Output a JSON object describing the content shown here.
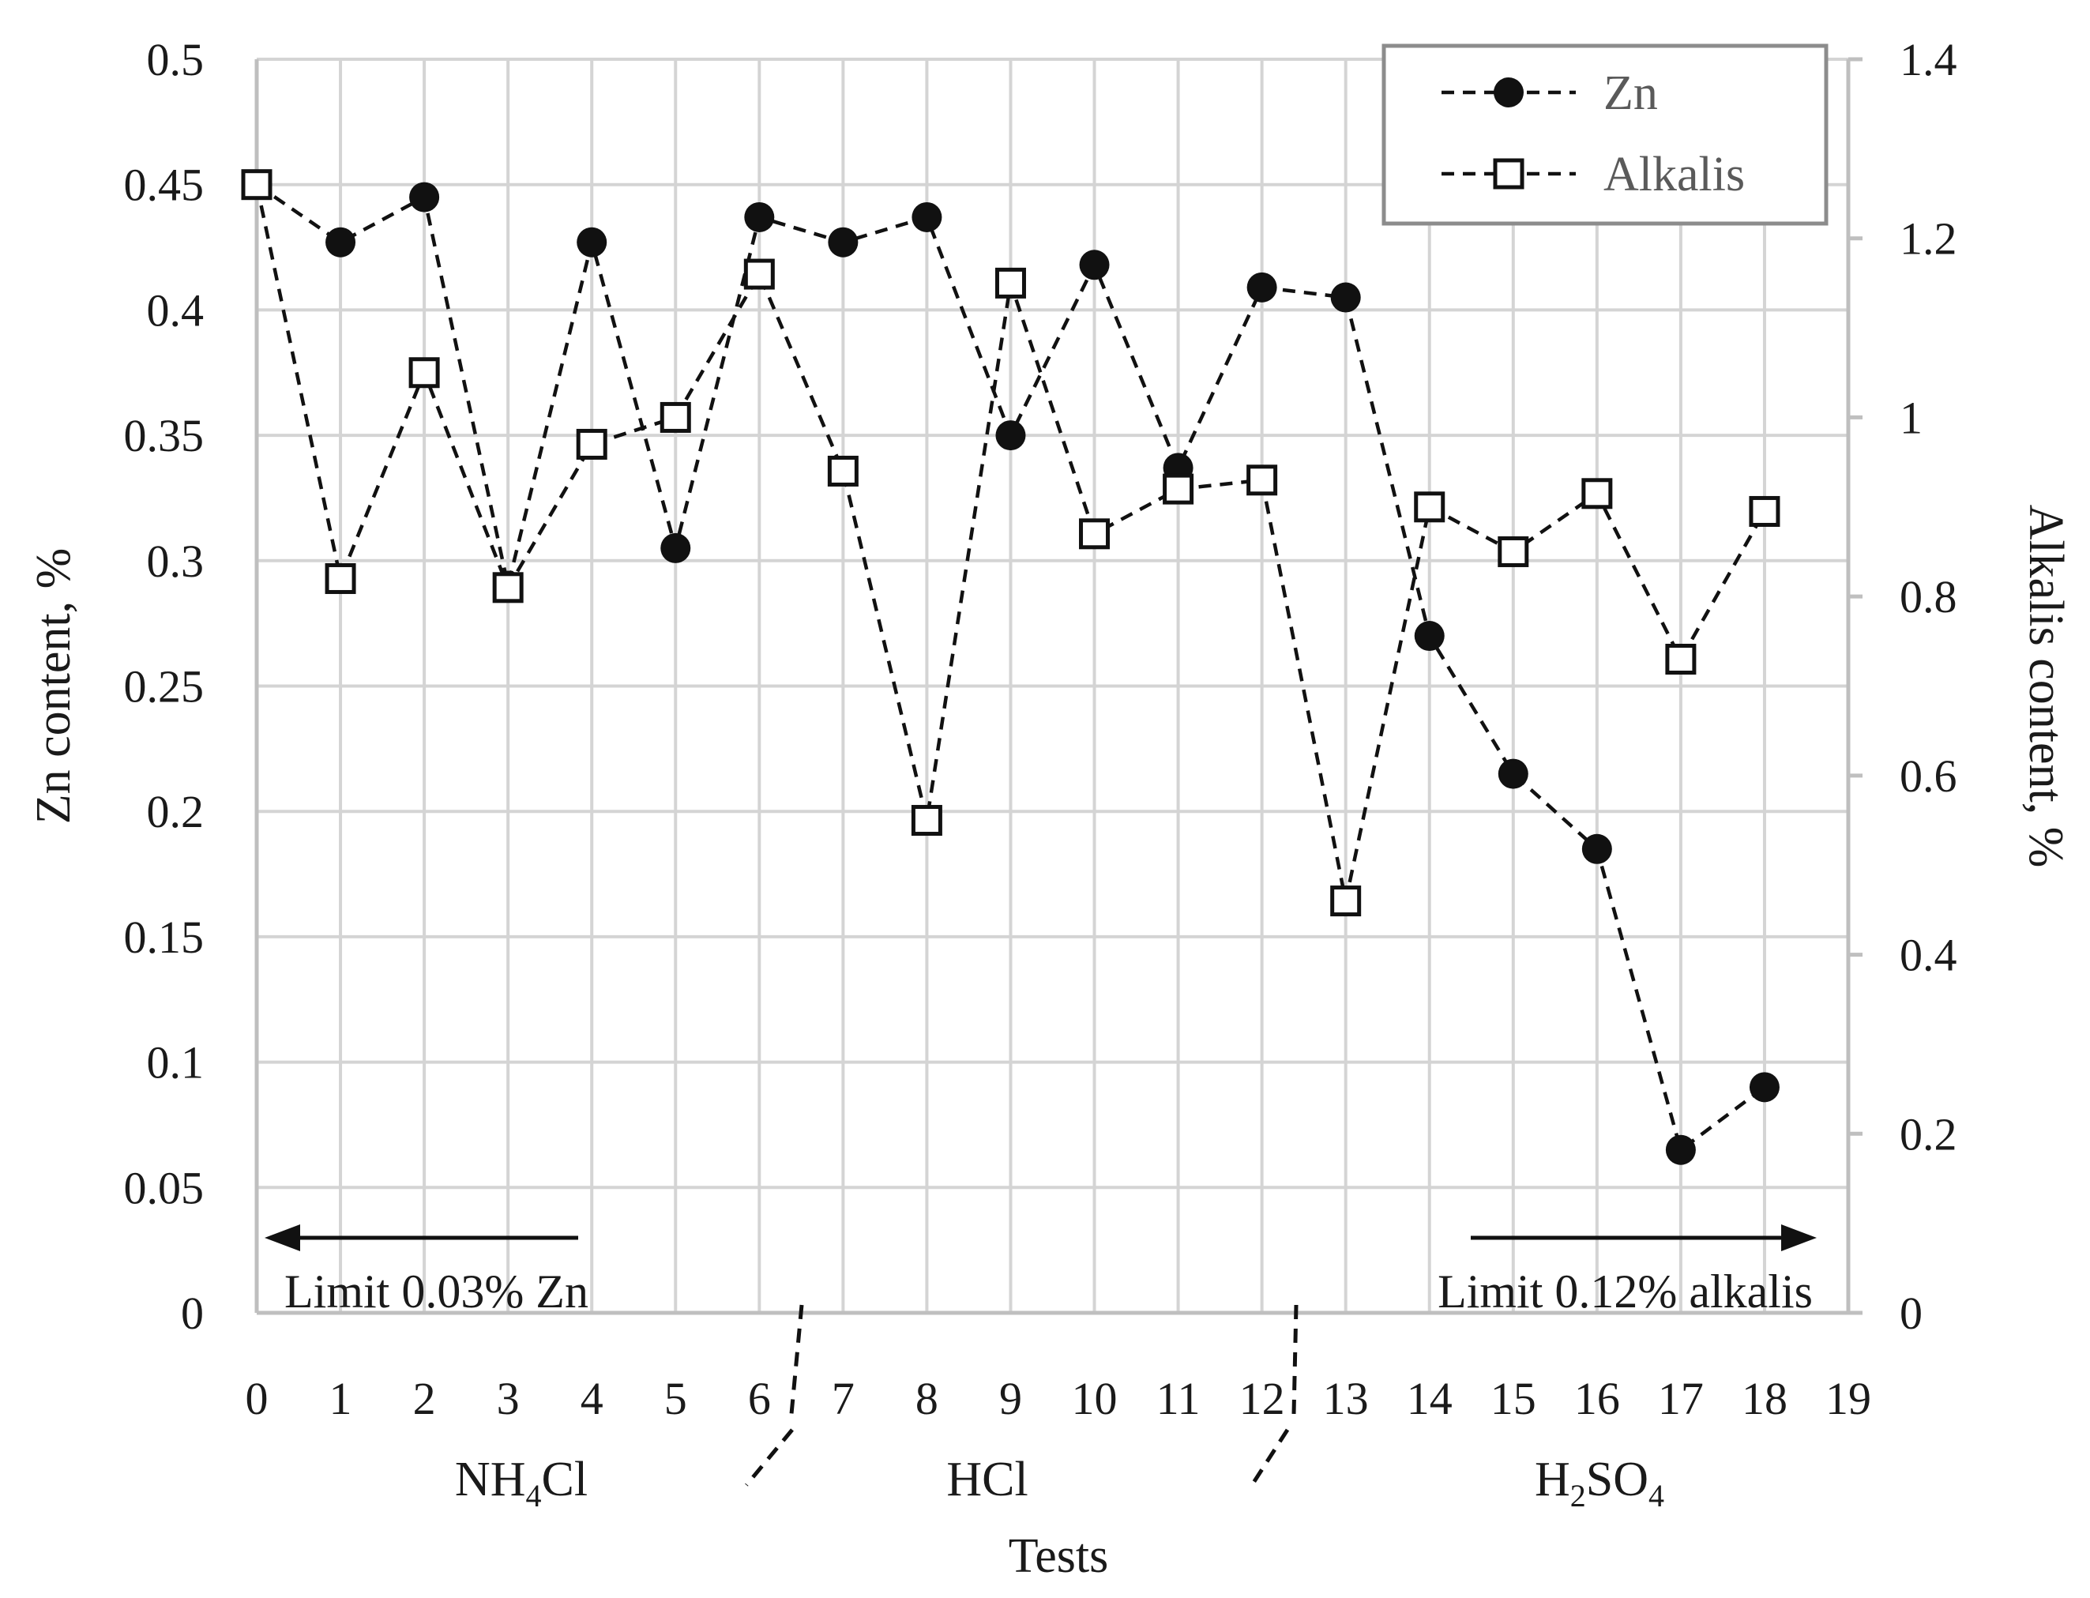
{
  "chart_data": {
    "type": "line",
    "x": [
      0,
      1,
      2,
      3,
      4,
      5,
      6,
      7,
      8,
      9,
      10,
      11,
      12,
      13,
      14,
      15,
      16,
      17,
      18
    ],
    "x_ticks": [
      0,
      1,
      2,
      3,
      4,
      5,
      6,
      7,
      8,
      9,
      10,
      11,
      12,
      13,
      14,
      15,
      16,
      17,
      18,
      19
    ],
    "xlim": [
      0,
      19
    ],
    "xlabel": "Tests",
    "ylabel": "Zn content, %",
    "ylim": [
      0,
      0.5
    ],
    "y_ticks": [
      "0",
      "0.05",
      "0.1",
      "0.15",
      "0.2",
      "0.25",
      "0.3",
      "0.35",
      "0.4",
      "0.45",
      "0.5"
    ],
    "y2label": "Alkalis content, %",
    "y2lim": [
      0,
      1.4
    ],
    "y2_ticks": [
      "0",
      "0.2",
      "0.4",
      "0.6",
      "0.8",
      "1",
      "1.2",
      "1.4"
    ],
    "grid": true,
    "legend_position": "top-right",
    "series": [
      {
        "name": "Zn",
        "axis": "left",
        "marker": "filled-circle",
        "values": [
          0.45,
          0.427,
          0.445,
          0.29,
          0.427,
          0.305,
          0.437,
          0.427,
          0.437,
          0.35,
          0.418,
          0.337,
          0.409,
          0.405,
          0.27,
          0.215,
          0.185,
          0.065,
          0.09
        ]
      },
      {
        "name": "Alkalis",
        "axis": "right",
        "marker": "open-square",
        "values": [
          1.26,
          0.82,
          1.05,
          0.81,
          0.97,
          1.0,
          1.16,
          0.94,
          0.55,
          1.15,
          0.87,
          0.92,
          0.93,
          0.46,
          0.9,
          0.85,
          0.915,
          0.73,
          0.895
        ]
      }
    ],
    "groups": [
      {
        "label": "NH4Cl",
        "main": "NH",
        "sub": "4",
        "rest": "Cl"
      },
      {
        "label": "HCl",
        "main": "HCl",
        "sub": "",
        "rest": ""
      },
      {
        "label": "H2SO4",
        "main": "H",
        "sub": "2",
        "rest": "SO",
        "sub2": "4"
      }
    ],
    "annotations": {
      "zn_limit": "Limit 0.03% Zn",
      "alkali_limit": "Limit 0.12% alkalis"
    }
  },
  "colors": {
    "grid": "#d4d4d4",
    "axis": "#bfbfbf",
    "series": "#111111",
    "legend_border": "#8c8c8c",
    "legend_text": "#5a5a5a"
  }
}
